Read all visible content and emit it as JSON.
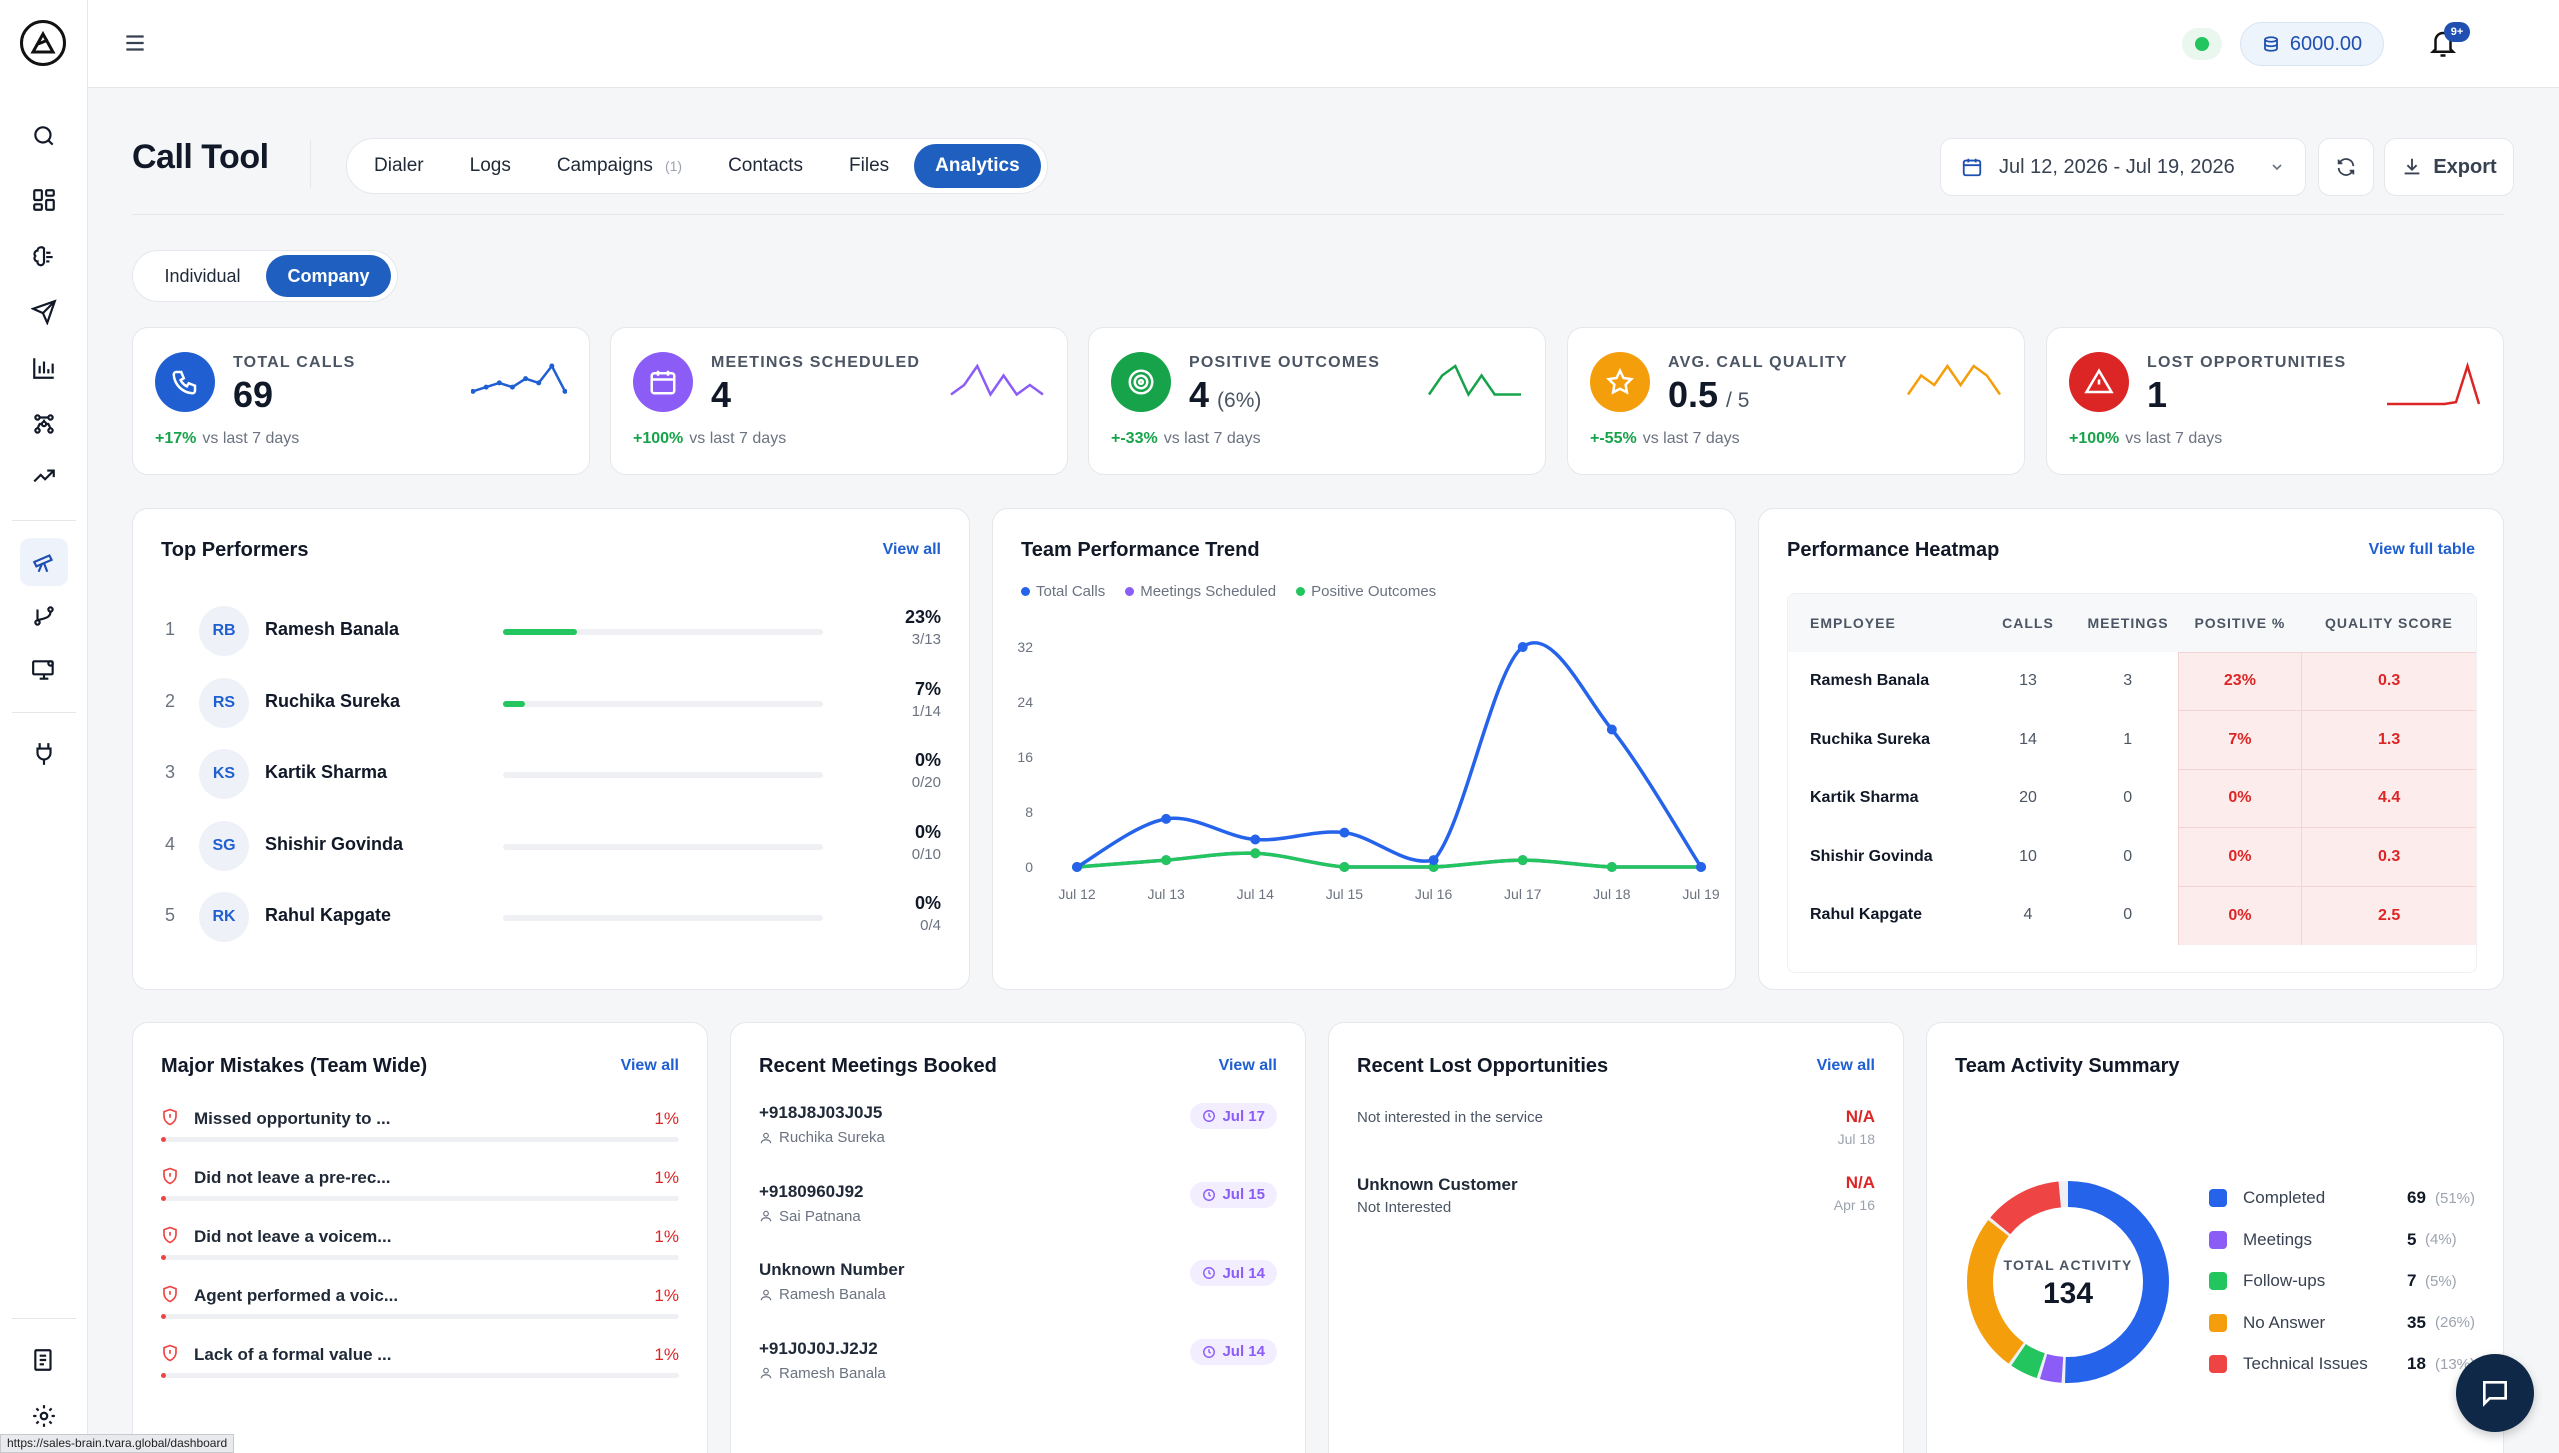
{
  "app": {
    "title": "Call Tool",
    "status_url": "https://sales-brain.tvara.global/dashboard"
  },
  "topbar": {
    "credits": "6000.00",
    "notif_badge": "9+"
  },
  "tabs": [
    {
      "label": "Dialer"
    },
    {
      "label": "Logs"
    },
    {
      "label": "Campaigns",
      "count": "(1)"
    },
    {
      "label": "Contacts"
    },
    {
      "label": "Files"
    },
    {
      "label": "Analytics",
      "active": true
    }
  ],
  "date_range": "Jul 12, 2026 - Jul 19, 2026",
  "export_label": "Export",
  "scope": {
    "individual": "Individual",
    "company": "Company",
    "active": "Company"
  },
  "kpis": [
    {
      "label": "TOTAL CALLS",
      "value": "69",
      "suffix": "",
      "delta": "+17%",
      "delta_text": "vs last 7 days",
      "color": "#1f5fd1",
      "icon": "phone-icon",
      "spark": [
        3,
        4,
        5,
        4,
        6,
        5,
        9,
        3
      ]
    },
    {
      "label": "MEETINGS SCHEDULED",
      "value": "4",
      "suffix": "",
      "delta": "+100%",
      "delta_text": "vs last 7 days",
      "color": "#8b5cf6",
      "icon": "calendar-icon",
      "spark": [
        1,
        2,
        4,
        1,
        3,
        1,
        2,
        1
      ]
    },
    {
      "label": "POSITIVE OUTCOMES",
      "value": "4",
      "suffix": "(6%)",
      "delta": "+-33%",
      "delta_text": "vs last 7 days",
      "color": "#16a34a",
      "icon": "target-icon",
      "spark": [
        1,
        3,
        4,
        1,
        3,
        1,
        1,
        1
      ]
    },
    {
      "label": "AVG. CALL QUALITY",
      "value": "0.5",
      "suffix": "/ 5",
      "delta": "+-55%",
      "delta_text": "vs last 7 days",
      "color": "#f59e0b",
      "icon": "star-icon",
      "spark": [
        1,
        3,
        2,
        4,
        2,
        4,
        3,
        1
      ]
    },
    {
      "label": "LOST OPPORTUNITIES",
      "value": "1",
      "suffix": "",
      "delta": "+100%",
      "delta_text": "vs last 7 days",
      "color": "#dc2626",
      "icon": "alert-triangle-icon",
      "spark": [
        0,
        0,
        0,
        0,
        0,
        0,
        0.2,
        4,
        0
      ]
    }
  ],
  "top_performers": {
    "title": "Top Performers",
    "view_all": "View all",
    "rows": [
      {
        "rank": "1",
        "initials": "RB",
        "name": "Ramesh Banala",
        "pct": "23%",
        "ratio": "3/13",
        "fill": 0.23
      },
      {
        "rank": "2",
        "initials": "RS",
        "name": "Ruchika Sureka",
        "pct": "7%",
        "ratio": "1/14",
        "fill": 0.07
      },
      {
        "rank": "3",
        "initials": "KS",
        "name": "Kartik Sharma",
        "pct": "0%",
        "ratio": "0/20",
        "fill": 0
      },
      {
        "rank": "4",
        "initials": "SG",
        "name": "Shishir Govinda",
        "pct": "0%",
        "ratio": "0/10",
        "fill": 0
      },
      {
        "rank": "5",
        "initials": "RK",
        "name": "Rahul Kapgate",
        "pct": "0%",
        "ratio": "0/4",
        "fill": 0
      }
    ]
  },
  "trend": {
    "title": "Team Performance Trend",
    "legend": [
      "Total Calls",
      "Meetings Scheduled",
      "Positive Outcomes"
    ],
    "colors": [
      "#2563eb",
      "#8b5cf6",
      "#22c55e"
    ]
  },
  "chart_data": {
    "type": "line",
    "x": [
      "Jul 12",
      "Jul 13",
      "Jul 14",
      "Jul 15",
      "Jul 16",
      "Jul 17",
      "Jul 18",
      "Jul 19"
    ],
    "y_ticks": [
      "0",
      "8",
      "16",
      "24",
      "32"
    ],
    "ylim": [
      0,
      32
    ],
    "series": [
      {
        "name": "Total Calls",
        "values": [
          0,
          7,
          4,
          5,
          1,
          32,
          20,
          0
        ]
      },
      {
        "name": "Meetings Scheduled",
        "values": [
          0,
          1,
          2,
          0,
          0,
          1,
          0,
          0
        ]
      },
      {
        "name": "Positive Outcomes",
        "values": [
          0,
          1,
          2,
          0,
          0,
          1,
          0,
          0
        ]
      }
    ]
  },
  "heatmap": {
    "title": "Performance Heatmap",
    "view_full": "View full table",
    "headers": [
      "EMPLOYEE",
      "CALLS",
      "MEETINGS",
      "POSITIVE %",
      "QUALITY SCORE"
    ],
    "rows": [
      {
        "name": "Ramesh Banala",
        "calls": "13",
        "meetings": "3",
        "positive": "23%",
        "quality": "0.3"
      },
      {
        "name": "Ruchika Sureka",
        "calls": "14",
        "meetings": "1",
        "positive": "7%",
        "quality": "1.3"
      },
      {
        "name": "Kartik Sharma",
        "calls": "20",
        "meetings": "0",
        "positive": "0%",
        "quality": "4.4"
      },
      {
        "name": "Shishir Govinda",
        "calls": "10",
        "meetings": "0",
        "positive": "0%",
        "quality": "0.3"
      },
      {
        "name": "Rahul Kapgate",
        "calls": "4",
        "meetings": "0",
        "positive": "0%",
        "quality": "2.5"
      }
    ]
  },
  "mistakes": {
    "title": "Major Mistakes (Team Wide)",
    "view_all": "View all",
    "rows": [
      {
        "text": "Missed opportunity to ...",
        "pct": "1%"
      },
      {
        "text": "Did not leave a pre-rec...",
        "pct": "1%"
      },
      {
        "text": "Did not leave a voicem...",
        "pct": "1%"
      },
      {
        "text": "Agent performed a voic...",
        "pct": "1%"
      },
      {
        "text": "Lack of a formal value ...",
        "pct": "1%"
      }
    ]
  },
  "meetings": {
    "title": "Recent Meetings Booked",
    "view_all": "View all",
    "rows": [
      {
        "number": "+918J8J03J0J5",
        "person": "Ruchika Sureka",
        "date": "Jul 17"
      },
      {
        "number": "+9180960J92",
        "person": "Sai Patnana",
        "date": "Jul 15"
      },
      {
        "number": "Unknown Number",
        "person": "Ramesh Banala",
        "date": "Jul 14"
      },
      {
        "number": "+91J0J0J.J2J2",
        "person": "Ramesh Banala",
        "date": "Jul 14"
      }
    ]
  },
  "lost": {
    "title": "Recent Lost Opportunities",
    "view_all": "View all",
    "rows": [
      {
        "name": "",
        "reason": "Not interested in the service",
        "status": "N/A",
        "date": "Jul 18"
      },
      {
        "name": "Unknown Customer",
        "reason": "Not Interested",
        "status": "N/A",
        "date": "Apr 16"
      }
    ]
  },
  "activity": {
    "title": "Team Activity Summary",
    "total_label": "TOTAL ACTIVITY",
    "total": "134",
    "items": [
      {
        "label": "Completed",
        "value": "69",
        "pct": "(51%)",
        "color": "#2563eb",
        "share": 0.51
      },
      {
        "label": "Meetings",
        "value": "5",
        "pct": "(4%)",
        "color": "#8b5cf6",
        "share": 0.04
      },
      {
        "label": "Follow-ups",
        "value": "7",
        "pct": "(5%)",
        "color": "#22c55e",
        "share": 0.05
      },
      {
        "label": "No Answer",
        "value": "35",
        "pct": "(26%)",
        "color": "#f59e0b",
        "share": 0.26
      },
      {
        "label": "Technical Issues",
        "value": "18",
        "pct": "(13%)",
        "color": "#ef4444",
        "share": 0.13
      }
    ]
  }
}
